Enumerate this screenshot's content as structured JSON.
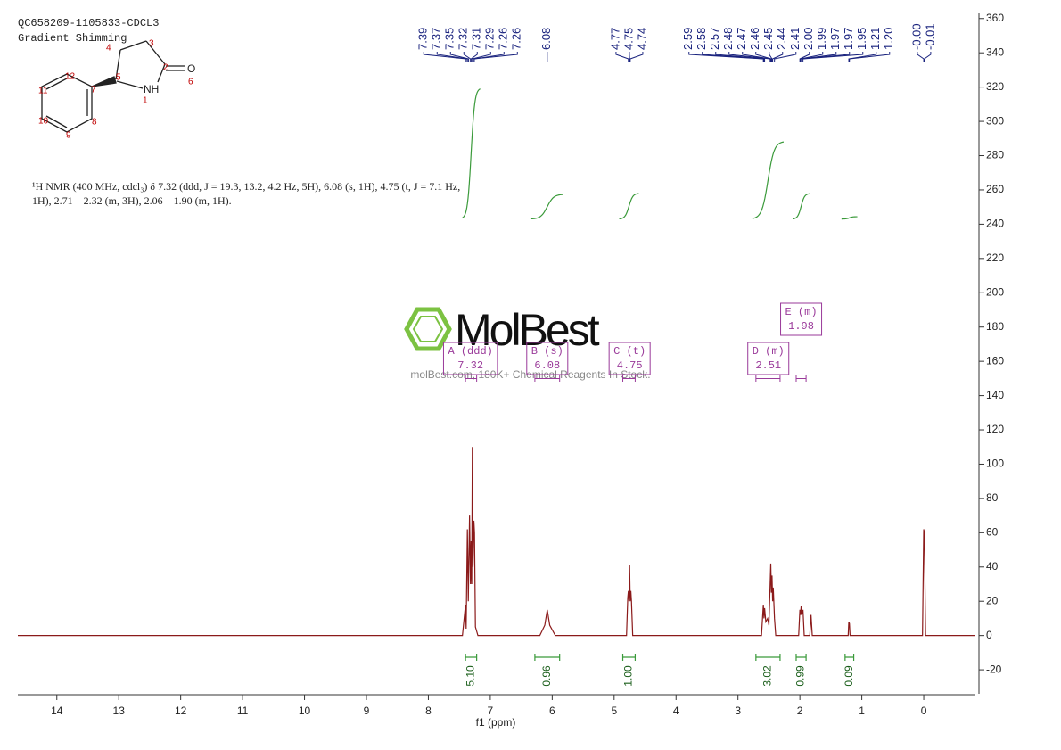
{
  "chart_data": {
    "type": "line",
    "title": "QC658209-1105833-CDCL3",
    "subtitle": "Gradient Shimming",
    "annotation": [
      "¹H NMR (400 MHz, cdcl₃) δ 7.32 (ddd, J = 19.3, 13.2, 4.2 Hz, 5H), 6.08 (s, 1H), 4.75 (t, J = 7.1 Hz,",
      "1H), 2.71 – 2.32 (m, 3H), 2.06 – 1.90 (m, 1H)."
    ],
    "xlabel": "f1 (ppm)",
    "xlim": [
      14.63,
      -0.82
    ],
    "xticks": [
      14,
      13,
      12,
      11,
      10,
      9,
      8,
      7,
      6,
      5,
      4,
      3,
      2,
      1,
      0
    ],
    "ylim": [
      -34,
      363
    ],
    "yticks": [
      -20,
      0,
      20,
      40,
      60,
      80,
      100,
      120,
      140,
      160,
      180,
      200,
      220,
      240,
      260,
      280,
      300,
      320,
      340,
      360
    ],
    "x": [
      14.63,
      7.45,
      7.4,
      7.39,
      7.37,
      7.355,
      7.335,
      7.32,
      7.31,
      7.3,
      7.29,
      7.28,
      7.265,
      7.255,
      7.24,
      7.2,
      6.2,
      6.12,
      6.08,
      6.04,
      5.95,
      4.8,
      4.78,
      4.77,
      4.76,
      4.75,
      4.74,
      4.73,
      4.72,
      4.7,
      2.62,
      2.6,
      2.59,
      2.58,
      2.57,
      2.55,
      2.52,
      2.5,
      2.48,
      2.47,
      2.46,
      2.45,
      2.44,
      2.43,
      2.41,
      2.39,
      2.02,
      2.0,
      1.99,
      1.98,
      1.97,
      1.95,
      1.93,
      1.84,
      1.82,
      1.8,
      1.22,
      1.21,
      1.2,
      1.19,
      0.02,
      0.0,
      -0.01,
      -0.03,
      -0.82
    ],
    "series": [
      {
        "color": "#8b1a1a",
        "values": [
          0,
          0,
          18,
          4,
          62,
          20,
          70,
          30,
          55,
          30,
          110,
          40,
          67,
          60,
          5,
          0,
          0,
          6,
          15,
          6,
          0,
          0,
          22,
          26,
          20,
          41,
          20,
          26,
          20,
          0,
          0,
          12,
          18,
          10,
          16,
          8,
          10,
          6,
          30,
          42,
          25,
          35,
          20,
          28,
          10,
          0,
          0,
          15,
          12,
          17,
          12,
          15,
          0,
          0,
          12,
          0,
          0,
          8,
          7,
          0,
          0,
          62,
          60,
          0,
          0
        ]
      }
    ],
    "peak_labels": [
      7.39,
      7.37,
      7.35,
      7.32,
      7.31,
      7.29,
      7.26,
      7.26,
      6.08,
      4.77,
      4.75,
      4.74,
      2.59,
      2.58,
      2.57,
      2.48,
      2.47,
      2.46,
      2.45,
      2.44,
      2.41,
      {
        "value": 2,
        "label": "2.00"
      },
      1.99,
      1.97,
      1.97,
      1.95,
      1.21,
      {
        "value": 1.2,
        "label": "1.20"
      },
      {
        "value": 0,
        "label": "-0.00"
      },
      -0.01
    ],
    "integrals": {
      "ranges": [
        [
          7.4,
          7.22
        ],
        [
          6.28,
          5.88
        ],
        [
          4.86,
          4.66
        ],
        [
          2.71,
          2.32
        ],
        [
          2.06,
          1.9
        ],
        [
          1.27,
          1.13
        ]
      ],
      "values": [
        5.1,
        0.96,
        1,
        3.02,
        0.99,
        0.09
      ],
      "value_labels": [
        "5.10",
        "0.96",
        "1.00",
        "3.02",
        "0.99",
        "0.09"
      ]
    },
    "multiplets": {
      "labels": [
        "A (ddd)",
        "B (s)",
        "C (t)",
        "D (m)",
        "E (m)"
      ],
      "shifts": [
        7.32,
        6.08,
        4.75,
        2.51,
        1.98
      ],
      "ranges": [
        [
          7.4,
          7.22
        ],
        [
          6.28,
          5.88
        ],
        [
          4.86,
          4.66
        ],
        [
          2.71,
          2.32
        ],
        [
          2.06,
          1.9
        ]
      ]
    }
  },
  "watermark": {
    "logo": "MolBest",
    "tagline": "molBest.com, 180K+ Chemical Reagents In Stock."
  },
  "molecule": {
    "atoms": [
      "NH",
      "O"
    ],
    "atom_numbers": [
      "1",
      "2",
      "3",
      "4",
      "5",
      "6",
      "7",
      "8",
      "9",
      "10",
      "11",
      "12"
    ]
  }
}
